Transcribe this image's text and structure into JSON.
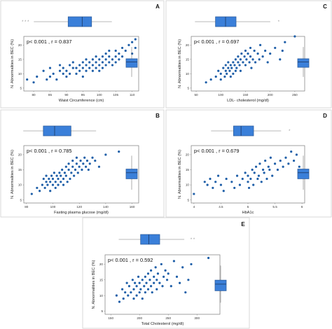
{
  "colors": {
    "point": "#1f5fa8",
    "box": "#3a7fd9",
    "box_border": "#2f5f9e"
  },
  "chart_data": [
    {
      "type": "scatter",
      "panel": "A",
      "stats": "p< 0.001 , r = 0.837",
      "xlabel": "Waist Circumference (cm)",
      "ylabel": "N. Abnormalities in BEC (%)",
      "xlim": [
        77,
        112
      ],
      "ylim": [
        4,
        23
      ],
      "xticks": [
        80,
        85,
        90,
        95,
        100,
        105,
        110
      ],
      "yticks": [
        5,
        10,
        15,
        20
      ],
      "x_box": {
        "q1": 93,
        "median": 97.5,
        "q3": 100.5,
        "min": 82,
        "max": 107,
        "outliers": "* * *"
      },
      "y_box": {
        "q1": 10.5,
        "median": 13,
        "q3": 14.5,
        "min": 6,
        "max": 20
      },
      "points": [
        [
          78,
          8
        ],
        [
          80,
          7
        ],
        [
          81,
          9
        ],
        [
          83,
          11
        ],
        [
          84,
          8
        ],
        [
          85,
          9
        ],
        [
          85,
          12
        ],
        [
          86,
          10
        ],
        [
          87,
          8
        ],
        [
          88,
          11
        ],
        [
          88,
          13
        ],
        [
          89,
          10
        ],
        [
          89,
          12
        ],
        [
          90,
          9
        ],
        [
          90,
          11
        ],
        [
          91,
          13
        ],
        [
          91,
          10
        ],
        [
          92,
          12
        ],
        [
          92,
          14
        ],
        [
          93,
          10
        ],
        [
          93,
          12
        ],
        [
          94,
          11
        ],
        [
          94,
          13
        ],
        [
          95,
          14
        ],
        [
          95,
          9
        ],
        [
          95,
          12
        ],
        [
          96,
          11
        ],
        [
          96,
          13
        ],
        [
          96,
          15
        ],
        [
          97,
          12
        ],
        [
          97,
          14
        ],
        [
          98,
          13
        ],
        [
          98,
          11
        ],
        [
          98,
          15
        ],
        [
          99,
          12
        ],
        [
          99,
          14
        ],
        [
          99,
          16
        ],
        [
          100,
          13
        ],
        [
          100,
          15
        ],
        [
          100,
          11
        ],
        [
          101,
          14
        ],
        [
          101,
          16
        ],
        [
          101,
          12
        ],
        [
          102,
          15
        ],
        [
          102,
          13
        ],
        [
          102,
          17
        ],
        [
          103,
          14
        ],
        [
          103,
          16
        ],
        [
          103,
          18
        ],
        [
          104,
          15
        ],
        [
          104,
          13
        ],
        [
          105,
          16
        ],
        [
          105,
          14
        ],
        [
          105,
          18
        ],
        [
          106,
          17
        ],
        [
          106,
          15
        ],
        [
          107,
          19
        ],
        [
          107,
          16
        ],
        [
          108,
          18
        ],
        [
          109,
          20
        ],
        [
          110,
          21
        ],
        [
          110,
          17
        ],
        [
          111,
          22
        ],
        [
          111,
          19
        ]
      ]
    },
    {
      "type": "scatter",
      "panel": "C",
      "stats": "p< 0.001 , r = 0.697",
      "xlabel": "LDL- cholesterol (mg/dl)",
      "ylabel": "N. Abnormalities in BEC (%)",
      "xlim": [
        40,
        270
      ],
      "ylim": [
        4,
        23
      ],
      "xticks": [
        50,
        100,
        150,
        200,
        250
      ],
      "yticks": [
        5,
        10,
        15,
        20
      ],
      "x_box": {
        "q1": 110,
        "median": 132,
        "q3": 155,
        "min": 65,
        "max": 230,
        "outliers": "*"
      },
      "y_box": {
        "q1": 10.5,
        "median": 13,
        "q3": 14.5,
        "min": 6,
        "max": 20
      },
      "points": [
        [
          70,
          7
        ],
        [
          80,
          8
        ],
        [
          90,
          9
        ],
        [
          95,
          11
        ],
        [
          100,
          10
        ],
        [
          100,
          8
        ],
        [
          105,
          12
        ],
        [
          108,
          9
        ],
        [
          110,
          11
        ],
        [
          110,
          13
        ],
        [
          112,
          10
        ],
        [
          115,
          12
        ],
        [
          115,
          14
        ],
        [
          118,
          11
        ],
        [
          120,
          13
        ],
        [
          120,
          9
        ],
        [
          122,
          12
        ],
        [
          125,
          14
        ],
        [
          125,
          10
        ],
        [
          128,
          13
        ],
        [
          130,
          15
        ],
        [
          130,
          11
        ],
        [
          132,
          12
        ],
        [
          135,
          14
        ],
        [
          135,
          16
        ],
        [
          138,
          13
        ],
        [
          140,
          15
        ],
        [
          140,
          11
        ],
        [
          142,
          17
        ],
        [
          145,
          14
        ],
        [
          148,
          16
        ],
        [
          150,
          13
        ],
        [
          150,
          18
        ],
        [
          152,
          15
        ],
        [
          155,
          17
        ],
        [
          158,
          14
        ],
        [
          160,
          19
        ],
        [
          160,
          16
        ],
        [
          162,
          12
        ],
        [
          165,
          15
        ],
        [
          168,
          18
        ],
        [
          170,
          14
        ],
        [
          175,
          17
        ],
        [
          178,
          15
        ],
        [
          180,
          20
        ],
        [
          185,
          16
        ],
        [
          190,
          18
        ],
        [
          195,
          14
        ],
        [
          200,
          17
        ],
        [
          210,
          19
        ],
        [
          220,
          15
        ],
        [
          225,
          18
        ],
        [
          230,
          21
        ],
        [
          250,
          23
        ]
      ]
    },
    {
      "type": "scatter",
      "panel": "B",
      "stats": "p< 0.001 , r = 0.785",
      "xlabel": "Fasting plasma glucose (mg/dl)",
      "ylabel": "N. Abnormalities in BEC (%)",
      "xlim": [
        78,
        165
      ],
      "ylim": [
        4,
        23
      ],
      "xticks": [
        80,
        100,
        120,
        140,
        160
      ],
      "yticks": [
        5,
        10,
        15,
        20
      ],
      "x_box": {
        "q1": 98,
        "median": 107,
        "q3": 120,
        "min": 82,
        "max": 140
      },
      "y_box": {
        "q1": 10.5,
        "median": 13,
        "q3": 14.5,
        "min": 6,
        "max": 20
      },
      "points": [
        [
          84,
          7
        ],
        [
          88,
          9
        ],
        [
          90,
          8
        ],
        [
          92,
          10
        ],
        [
          93,
          12
        ],
        [
          94,
          9
        ],
        [
          95,
          11
        ],
        [
          95,
          13
        ],
        [
          96,
          10
        ],
        [
          97,
          12
        ],
        [
          98,
          8
        ],
        [
          98,
          11
        ],
        [
          99,
          13
        ],
        [
          100,
          10
        ],
        [
          100,
          12
        ],
        [
          101,
          14
        ],
        [
          102,
          11
        ],
        [
          102,
          9
        ],
        [
          103,
          13
        ],
        [
          104,
          12
        ],
        [
          104,
          10
        ],
        [
          105,
          14
        ],
        [
          106,
          11
        ],
        [
          106,
          13
        ],
        [
          107,
          15
        ],
        [
          108,
          12
        ],
        [
          108,
          10
        ],
        [
          109,
          14
        ],
        [
          110,
          13
        ],
        [
          110,
          16
        ],
        [
          111,
          11
        ],
        [
          112,
          15
        ],
        [
          112,
          17
        ],
        [
          113,
          12
        ],
        [
          114,
          14
        ],
        [
          115,
          16
        ],
        [
          115,
          18
        ],
        [
          116,
          13
        ],
        [
          117,
          15
        ],
        [
          118,
          17
        ],
        [
          118,
          19
        ],
        [
          119,
          14
        ],
        [
          120,
          16
        ],
        [
          121,
          18
        ],
        [
          122,
          15
        ],
        [
          123,
          17
        ],
        [
          124,
          19
        ],
        [
          125,
          16
        ],
        [
          126,
          18
        ],
        [
          127,
          15
        ],
        [
          128,
          17
        ],
        [
          130,
          19
        ],
        [
          132,
          18
        ],
        [
          135,
          16
        ],
        [
          140,
          20
        ],
        [
          150,
          21
        ]
      ]
    },
    {
      "type": "scatter",
      "panel": "D",
      "stats": "p< 0.001 , r = 0.679",
      "xlabel": "HbA1c",
      "ylabel": "N. Abnormalities in BEC (%)",
      "xlim": [
        3.95,
        6.05
      ],
      "ylim": [
        4,
        23
      ],
      "xticks": [
        4.0,
        4.5,
        5.0,
        5.5,
        6.0
      ],
      "yticks": [
        5,
        10,
        15,
        20
      ],
      "x_box": {
        "q1": 4.95,
        "median": 5.1,
        "q3": 5.35,
        "min": 4.5,
        "max": 5.9,
        "outliers": "*"
      },
      "y_box": {
        "q1": 10.5,
        "median": 13,
        "q3": 14.5,
        "min": 6,
        "max": 20
      },
      "points": [
        [
          4.0,
          7
        ],
        [
          4.2,
          11
        ],
        [
          4.25,
          10
        ],
        [
          4.3,
          12
        ],
        [
          4.35,
          9
        ],
        [
          4.4,
          11
        ],
        [
          4.45,
          13
        ],
        [
          4.5,
          10
        ],
        [
          4.55,
          8
        ],
        [
          4.6,
          12
        ],
        [
          4.7,
          11
        ],
        [
          4.75,
          9
        ],
        [
          4.8,
          13
        ],
        [
          4.85,
          10
        ],
        [
          4.9,
          12
        ],
        [
          4.95,
          14
        ],
        [
          5.0,
          11
        ],
        [
          5.0,
          13
        ],
        [
          5.02,
          9
        ],
        [
          5.05,
          12
        ],
        [
          5.08,
          15
        ],
        [
          5.1,
          10
        ],
        [
          5.12,
          14
        ],
        [
          5.15,
          16
        ],
        [
          5.18,
          12
        ],
        [
          5.2,
          13
        ],
        [
          5.22,
          17
        ],
        [
          5.25,
          11
        ],
        [
          5.28,
          15
        ],
        [
          5.3,
          14
        ],
        [
          5.32,
          18
        ],
        [
          5.35,
          12
        ],
        [
          5.38,
          16
        ],
        [
          5.4,
          15
        ],
        [
          5.42,
          19
        ],
        [
          5.45,
          13
        ],
        [
          5.5,
          17
        ],
        [
          5.55,
          15
        ],
        [
          5.6,
          18
        ],
        [
          5.65,
          16
        ],
        [
          5.7,
          19
        ],
        [
          5.75,
          17
        ],
        [
          5.8,
          21
        ],
        [
          5.85,
          18
        ],
        [
          5.9,
          20
        ],
        [
          5.95,
          16
        ]
      ]
    },
    {
      "type": "scatter",
      "panel": "E",
      "stats": "p< 0.001 , r = 0.592",
      "xlabel": "Total Cholesterol (mg/dl)",
      "ylabel": "N. Abnormalities in BEC (%)",
      "xlim": [
        140,
        340
      ],
      "ylim": [
        4,
        23
      ],
      "xticks": [
        150,
        200,
        250,
        300
      ],
      "yticks": [
        5,
        10,
        15,
        20
      ],
      "x_box": {
        "q1": 205,
        "median": 220,
        "q3": 240,
        "min": 165,
        "max": 285,
        "outliers": "* *"
      },
      "y_box": {
        "q1": 10.5,
        "median": 13,
        "q3": 14.5,
        "min": 6,
        "max": 20
      },
      "points": [
        [
          160,
          10
        ],
        [
          165,
          8
        ],
        [
          170,
          12
        ],
        [
          172,
          9
        ],
        [
          175,
          11
        ],
        [
          178,
          14
        ],
        [
          180,
          10
        ],
        [
          182,
          13
        ],
        [
          185,
          11
        ],
        [
          188,
          15
        ],
        [
          190,
          9
        ],
        [
          190,
          12
        ],
        [
          192,
          14
        ],
        [
          195,
          10
        ],
        [
          195,
          13
        ],
        [
          198,
          16
        ],
        [
          200,
          11
        ],
        [
          200,
          14
        ],
        [
          202,
          12
        ],
        [
          205,
          15
        ],
        [
          205,
          9
        ],
        [
          208,
          13
        ],
        [
          210,
          16
        ],
        [
          210,
          11
        ],
        [
          212,
          14
        ],
        [
          215,
          12
        ],
        [
          215,
          17
        ],
        [
          218,
          15
        ],
        [
          220,
          13
        ],
        [
          220,
          18
        ],
        [
          222,
          11
        ],
        [
          225,
          16
        ],
        [
          225,
          14
        ],
        [
          228,
          19
        ],
        [
          230,
          12
        ],
        [
          230,
          15
        ],
        [
          232,
          17
        ],
        [
          235,
          14
        ],
        [
          238,
          20
        ],
        [
          240,
          13
        ],
        [
          242,
          16
        ],
        [
          245,
          18
        ],
        [
          248,
          15
        ],
        [
          250,
          17
        ],
        [
          255,
          13
        ],
        [
          260,
          21
        ],
        [
          265,
          16
        ],
        [
          270,
          14
        ],
        [
          275,
          19
        ],
        [
          280,
          11
        ],
        [
          285,
          15
        ],
        [
          290,
          20
        ],
        [
          320,
          22
        ]
      ]
    }
  ]
}
